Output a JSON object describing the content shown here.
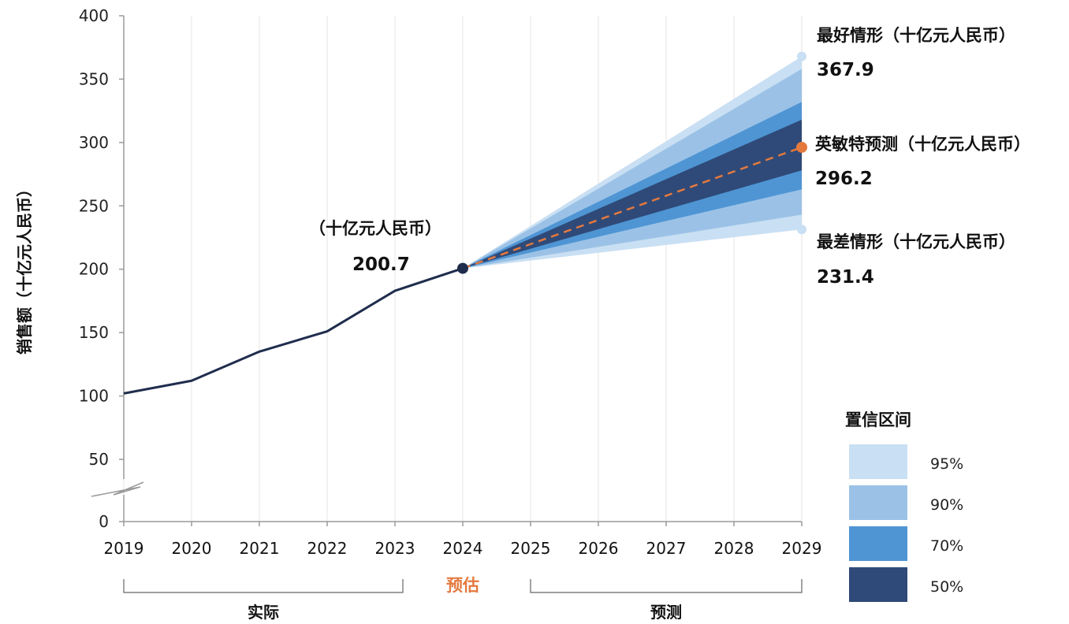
{
  "chart_data": {
    "type": "line",
    "ylabel": "销售额（十亿元人民币）",
    "ylim": [
      0,
      400
    ],
    "y_ticks": [
      0,
      50,
      100,
      150,
      200,
      250,
      300,
      350,
      400
    ],
    "y_axis_break": "between 0 and 50",
    "grid": "vertical",
    "x": [
      2019,
      2020,
      2021,
      2022,
      2023,
      2024,
      2025,
      2026,
      2027,
      2028,
      2029
    ],
    "series": [
      {
        "style": "solid",
        "color": "#1f2d4d",
        "points": [
          [
            2019,
            102
          ],
          [
            2020,
            112
          ],
          [
            2021,
            135
          ],
          [
            2022,
            151
          ],
          [
            2023,
            183
          ],
          [
            2024,
            200.7
          ]
        ]
      },
      {
        "style": "dashed",
        "color": "#e4793e",
        "points": [
          [
            2024,
            200.7
          ],
          [
            2029,
            296.2
          ]
        ]
      }
    ],
    "forecast_fan": {
      "start": [
        2024,
        200.7
      ],
      "end_year": 2029,
      "bands": [
        {
          "level": "95%",
          "lower": 231.4,
          "upper": 367.9,
          "color": "#c9dff3"
        },
        {
          "level": "90%",
          "lower": 243,
          "upper": 358,
          "color": "#9bc2e6"
        },
        {
          "level": "70%",
          "lower": 263,
          "upper": 332,
          "color": "#4f95d4"
        },
        {
          "level": "50%",
          "lower": 278,
          "upper": 318,
          "color": "#2f4a78"
        }
      ]
    },
    "annotations": [
      {
        "x": 2024,
        "y": 200.7,
        "label": "（十亿元人民币）",
        "value": "200.7",
        "color": "#1f2d4d"
      },
      {
        "x": 2029,
        "y": 367.9,
        "label": "最好情形（十亿元人民币）",
        "value": "367.9",
        "color": "#c9dff3"
      },
      {
        "x": 2029,
        "y": 296.2,
        "label": "英敏特预测（十亿元人民币）",
        "value": "296.2",
        "color": "#e4793e"
      },
      {
        "x": 2029,
        "y": 231.4,
        "label": "最差情形（十亿元人民币）",
        "value": "231.4",
        "color": "#c9dff3"
      }
    ],
    "periods": [
      {
        "label": "实际",
        "from": 2019,
        "to": 2023,
        "color": "#111111"
      },
      {
        "label": "预估",
        "at": 2024,
        "color": "#e4793e"
      },
      {
        "label": "预测",
        "from": 2025,
        "to": 2029,
        "color": "#111111"
      }
    ],
    "legend": {
      "title": "置信区间",
      "position": "bottom-right",
      "items": [
        {
          "label": "95%",
          "color": "#c9dff3"
        },
        {
          "label": "90%",
          "color": "#9bc2e6"
        },
        {
          "label": "70%",
          "color": "#4f95d4"
        },
        {
          "label": "50%",
          "color": "#2f4a78"
        }
      ]
    }
  }
}
